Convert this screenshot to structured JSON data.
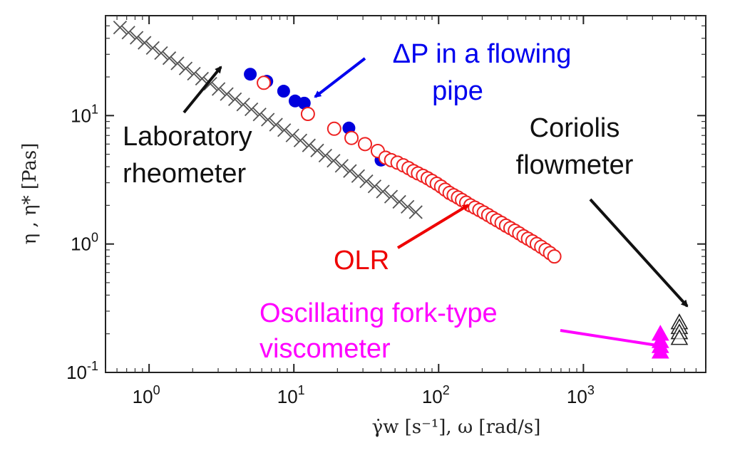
{
  "chart_data": {
    "type": "scatter",
    "title": "",
    "xlabel": "γ̇w [s⁻¹], ω [rad/s]",
    "ylabel": "η , η* [Pas]",
    "x_scale": "log",
    "y_scale": "log",
    "xlim": [
      0.5,
      7000
    ],
    "ylim": [
      0.1,
      60
    ],
    "grid": false,
    "x_ticks": [
      {
        "value": 1,
        "base": "10",
        "exp": "0"
      },
      {
        "value": 10,
        "base": "10",
        "exp": "1"
      },
      {
        "value": 100,
        "base": "10",
        "exp": "2"
      },
      {
        "value": 1000,
        "base": "10",
        "exp": "3"
      }
    ],
    "y_ticks": [
      {
        "value": 0.1,
        "base": "10",
        "exp": "-1"
      },
      {
        "value": 1,
        "base": "10",
        "exp": "0"
      },
      {
        "value": 10,
        "base": "10",
        "exp": "1"
      }
    ],
    "series": [
      {
        "marker": "x",
        "color": "#555555",
        "x": [
          0.63,
          0.72,
          0.82,
          0.93,
          1.06,
          1.21,
          1.38,
          1.57,
          1.79,
          2.04,
          2.32,
          2.65,
          3.02,
          3.44,
          3.92,
          4.47,
          5.09,
          5.8,
          6.61,
          7.53,
          8.58,
          9.78,
          11.1,
          12.7,
          14.5,
          16.5,
          18.8,
          21.4,
          24.4,
          27.8,
          31.7,
          36.1,
          41.2,
          46.9,
          53.5,
          61.0,
          69.5
        ],
        "y": [
          48.5,
          44.3,
          40.4,
          36.9,
          33.6,
          30.7,
          28.0,
          25.5,
          23.3,
          21.2,
          19.4,
          17.7,
          16.1,
          14.7,
          13.4,
          12.2,
          11.2,
          10.2,
          9.3,
          8.5,
          7.7,
          7.0,
          6.4,
          5.86,
          5.35,
          4.88,
          4.45,
          4.06,
          3.7,
          3.38,
          3.08,
          2.81,
          2.56,
          2.34,
          2.13,
          1.95,
          1.77
        ]
      },
      {
        "marker": "filled-circle",
        "color": "#0000dd",
        "x": [
          5.0,
          6.5,
          8.5,
          10.2,
          11.8,
          24.0,
          40.0
        ],
        "y": [
          21.0,
          18.5,
          15.5,
          13.0,
          12.5,
          8.0,
          4.5
        ]
      },
      {
        "marker": "open-circle",
        "color": "#ee2222",
        "x": [
          6.2,
          12.5,
          19.0,
          25.0,
          31.0,
          38.0,
          43.0,
          47.0,
          52.0,
          57.0,
          62.0,
          67.0,
          72.0,
          78.0,
          84.0,
          90.0,
          97.0,
          104.0,
          111.0,
          119.0,
          127.0,
          136.0,
          145.0,
          155.0,
          166.0,
          178.0,
          191.0,
          205.0,
          220.0,
          236.0,
          253.0,
          272.0,
          292.0,
          313.0,
          336.0,
          360.0,
          386.0,
          414.0,
          444.0,
          476.0,
          511.0,
          548.0,
          588.0,
          630.0
        ],
        "y": [
          18.0,
          10.3,
          7.9,
          6.7,
          6.0,
          5.3,
          4.7,
          4.5,
          4.3,
          4.1,
          3.9,
          3.7,
          3.55,
          3.4,
          3.25,
          3.1,
          2.95,
          2.8,
          2.65,
          2.5,
          2.4,
          2.3,
          2.2,
          2.1,
          2.0,
          1.92,
          1.84,
          1.76,
          1.68,
          1.6,
          1.53,
          1.46,
          1.39,
          1.33,
          1.27,
          1.21,
          1.15,
          1.1,
          1.05,
          1.0,
          0.95,
          0.9,
          0.85,
          0.8
        ]
      },
      {
        "marker": "filled-triangle",
        "color": "#ff00ff",
        "x": [
          3400,
          3400,
          3400,
          3400
        ],
        "y": [
          0.2,
          0.175,
          0.16,
          0.145
        ]
      },
      {
        "marker": "open-triangle",
        "color": "#222222",
        "x": [
          4600,
          4600,
          4600,
          4600
        ],
        "y": [
          0.245,
          0.225,
          0.205,
          0.185
        ]
      }
    ],
    "annotations": [
      {
        "lines": [
          "ΔP in a flowing",
          "pipe"
        ],
        "color": "#0000ee"
      },
      {
        "lines": [
          "Laboratory",
          "rheometer"
        ],
        "color": "#111111"
      },
      {
        "lines": [
          "Coriolis",
          "flowmeter"
        ],
        "color": "#111111"
      },
      {
        "lines": [
          "OLR"
        ],
        "color": "#ee0000"
      },
      {
        "lines": [
          "Oscillating fork-type",
          "viscometer"
        ],
        "color": "#ff00ff"
      }
    ]
  }
}
